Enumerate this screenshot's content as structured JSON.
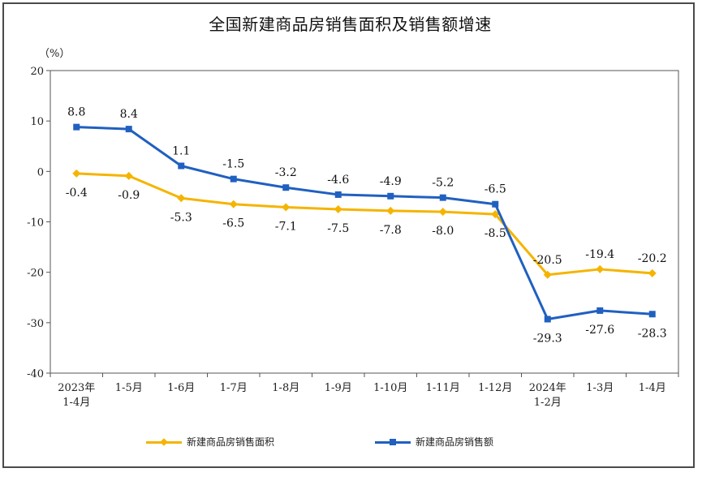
{
  "chart_data": {
    "type": "line",
    "title": "全国新建商品房销售面积及销售额增速",
    "unit_label": "（%）",
    "ylim": [
      -40,
      20
    ],
    "yticks": [
      -40,
      -30,
      -20,
      -10,
      0,
      10,
      20
    ],
    "categories": [
      [
        "2023年",
        "1-4月"
      ],
      [
        "1-5月"
      ],
      [
        "1-6月"
      ],
      [
        "1-7月"
      ],
      [
        "1-8月"
      ],
      [
        "1-9月"
      ],
      [
        "1-10月"
      ],
      [
        "1-11月"
      ],
      [
        "1-12月"
      ],
      [
        "2024年",
        "1-2月"
      ],
      [
        "1-3月"
      ],
      [
        "1-4月"
      ]
    ],
    "series": [
      {
        "name": "新建商品房销售面积",
        "color": "#f5b400",
        "marker": "diamond",
        "values": [
          -0.4,
          -0.9,
          -5.3,
          -6.5,
          -7.1,
          -7.5,
          -7.8,
          -8.0,
          -8.5,
          -20.5,
          -19.4,
          -20.2
        ],
        "labels": [
          "-0.4",
          "-0.9",
          "-5.3",
          "-6.5",
          "-7.1",
          "-7.5",
          "-7.8",
          "-8.0",
          "-8.5",
          "-20.5",
          "-19.4",
          "-20.2"
        ]
      },
      {
        "name": "新建商品房销售额",
        "color": "#2060c0",
        "marker": "square",
        "values": [
          8.8,
          8.4,
          1.1,
          -1.5,
          -3.2,
          -4.6,
          -4.9,
          -5.2,
          -6.5,
          -29.3,
          -27.6,
          -28.3
        ],
        "labels": [
          "8.8",
          "8.4",
          "1.1",
          "-1.5",
          "-3.2",
          "-4.6",
          "-4.9",
          "-5.2",
          "-6.5",
          "-29.3",
          "-27.6",
          "-28.3"
        ]
      }
    ]
  }
}
